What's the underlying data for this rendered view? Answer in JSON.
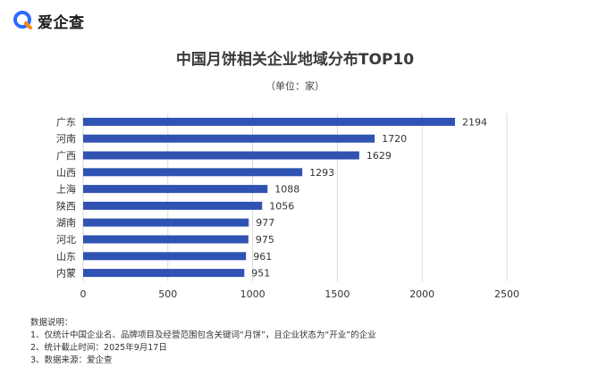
{
  "brand": {
    "name": "爱企查",
    "logo_icon": "aiqicha-logo-icon",
    "logo_color": "#2f6bff",
    "logo_accent": "#ff8a00"
  },
  "chart_data": {
    "type": "bar",
    "orientation": "horizontal",
    "title": "中国月饼相关企业地域分布TOP10",
    "subtitle": "（单位：家）",
    "categories": [
      "广东",
      "河南",
      "广西",
      "山西",
      "上海",
      "陕西",
      "湖南",
      "河北",
      "山东",
      "内蒙"
    ],
    "values": [
      2194,
      1720,
      1629,
      1293,
      1088,
      1056,
      977,
      975,
      961,
      951
    ],
    "xlim": [
      0,
      2500
    ],
    "xticks": [
      0,
      500,
      1000,
      1500,
      2000,
      2500
    ],
    "grid": true,
    "bar_color": "#2f52b3",
    "xlabel": "",
    "ylabel": ""
  },
  "notes": {
    "heading": "数据说明：",
    "items": [
      "1、仅统计中国企业名、品牌项目及经营范围包含关键词“月饼”，且企业状态为“开业”的企业",
      "2、统计截止时间：2025年9月17日",
      "3、数据来源：爱企查"
    ]
  }
}
